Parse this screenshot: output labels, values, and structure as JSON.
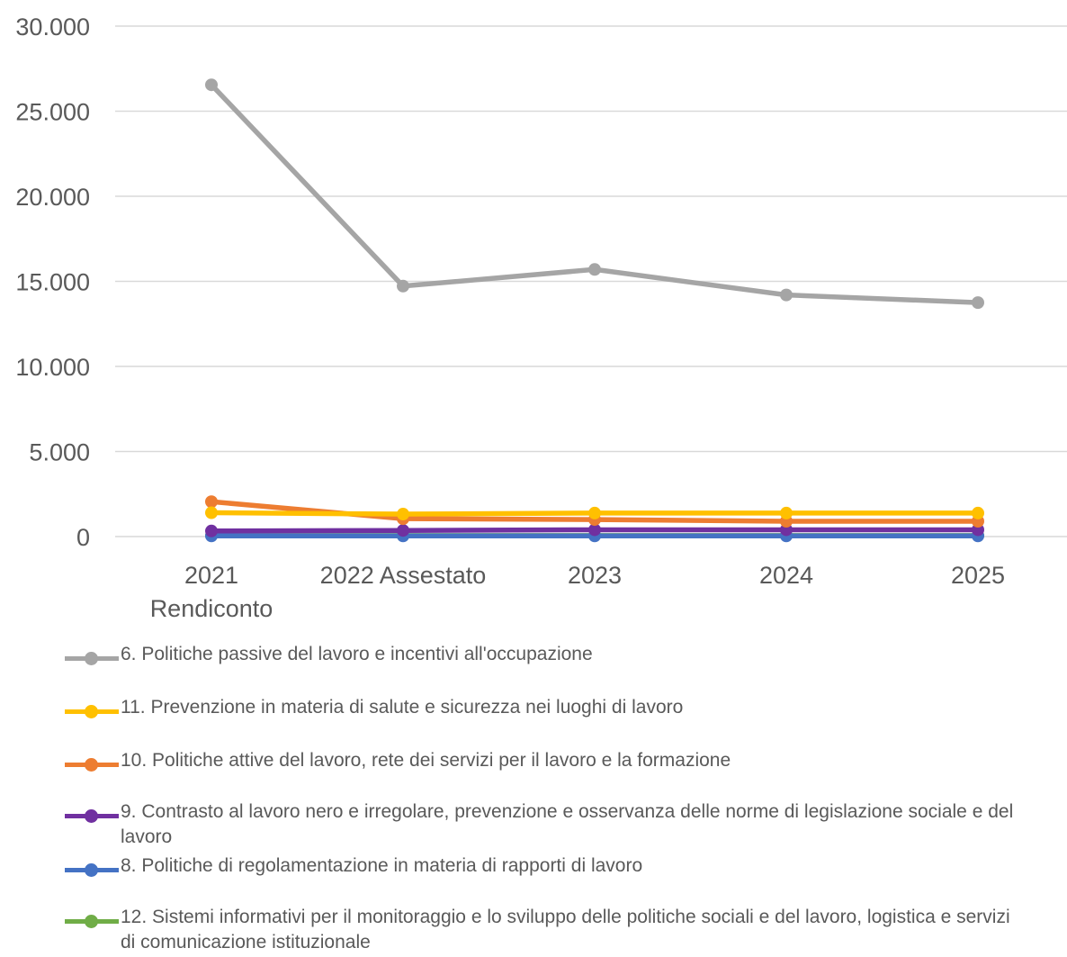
{
  "chart_data": {
    "type": "line",
    "categories": [
      "2021 Rendiconto",
      "2022 Assestato",
      "2023",
      "2024",
      "2025"
    ],
    "category_lines": [
      [
        "2021",
        "Rendiconto"
      ],
      [
        "2022 Assestato"
      ],
      [
        "2023"
      ],
      [
        "2024"
      ],
      [
        "2025"
      ]
    ],
    "ylim": [
      0,
      30000
    ],
    "yticks": [
      0,
      5000,
      10000,
      15000,
      20000,
      25000,
      30000
    ],
    "ytick_labels": [
      "0",
      "5.000",
      "10.000",
      "15.000",
      "20.000",
      "25.000",
      "30.000"
    ],
    "grid": true,
    "legend_position": "bottom",
    "series": [
      {
        "name": "6. Politiche passive del lavoro e incentivi all'occupazione",
        "color": "#a5a5a5",
        "values": [
          26550,
          14720,
          15700,
          14200,
          13750
        ]
      },
      {
        "name": "11. Prevenzione in materia di salute e sicurezza nei luoghi di lavoro",
        "color": "#ffc000",
        "values": [
          1400,
          1320,
          1380,
          1380,
          1380
        ]
      },
      {
        "name": "10. Politiche attive del lavoro, rete dei servizi per il lavoro e la formazione",
        "color": "#ed7d31",
        "values": [
          2050,
          1050,
          1000,
          900,
          900
        ]
      },
      {
        "name": "9. Contrasto al lavoro nero e irregolare, prevenzione e osservanza delle norme di legislazione sociale e del lavoro",
        "color": "#7030a0",
        "values": [
          330,
          360,
          400,
          400,
          400
        ]
      },
      {
        "name": "8. Politiche di regolamentazione in materia di rapporti di lavoro",
        "color": "#4472c4",
        "values": [
          40,
          40,
          40,
          40,
          40
        ]
      },
      {
        "name": "12. Sistemi informativi per il monitoraggio e lo sviluppo delle politiche sociali e del lavoro, logistica e servizi di comunicazione istituzionale",
        "color": "#70ad47",
        "values": [
          60,
          60,
          60,
          60,
          60
        ]
      }
    ]
  }
}
